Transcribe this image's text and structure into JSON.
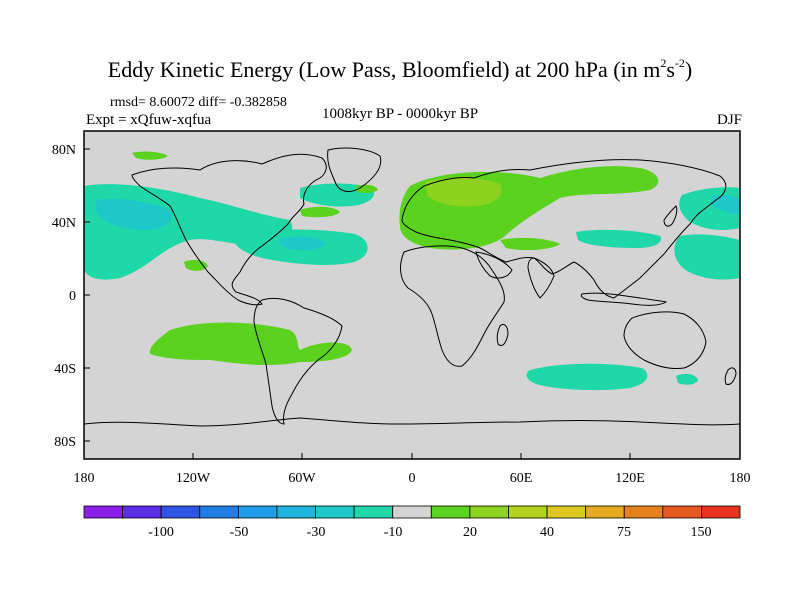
{
  "title": {
    "main": "Eddy Kinetic Energy (Low Pass, Bloomfield) at 200 hPa (in m",
    "sup1": "2",
    "mid": "s",
    "sup2": "-2",
    "end": ")"
  },
  "stats_line": "rmsd= 8.60072 diff= -0.382858",
  "experiment": "Expt = xQfuw-xqfua",
  "period": "1008kyr BP - 0000kyr BP",
  "season": "DJF",
  "x_ticks": [
    "180",
    "120W",
    "60W",
    "0",
    "60E",
    "120E",
    "180"
  ],
  "y_ticks": [
    "80N",
    "40N",
    "0",
    "40S",
    "80S"
  ],
  "colorbar": {
    "colors": [
      "#8b1ee6",
      "#5a2ee6",
      "#2e55e6",
      "#1e7ee6",
      "#1e9ee6",
      "#1eb2dc",
      "#1ec8c8",
      "#1ed8a8",
      "#d4d4d4",
      "#5ad21e",
      "#8cd21e",
      "#b4d21e",
      "#dcc81e",
      "#e6aa1e",
      "#e6821e",
      "#e65a1e",
      "#e6321e"
    ],
    "labels": [
      "-100",
      "-50",
      "-30",
      "-10",
      "20",
      "40",
      "75",
      "150"
    ]
  },
  "palette": {
    "land_bg": "#d4d4d4",
    "neg_light": "#1ed8a8",
    "neg_mid": "#1ec8c8",
    "pos_light": "#5ad21e",
    "pos_mid": "#8cd21e"
  }
}
